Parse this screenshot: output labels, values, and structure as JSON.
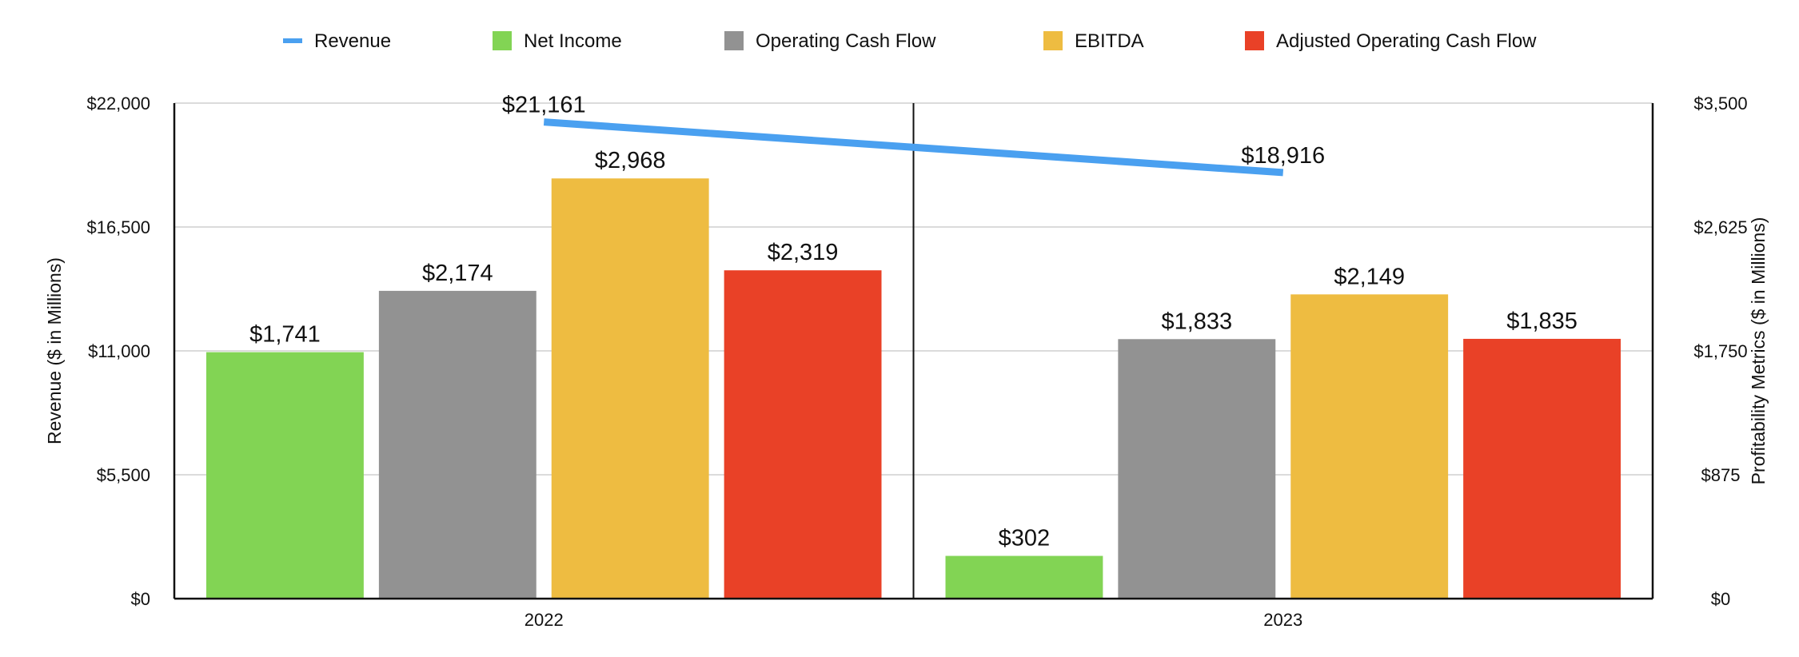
{
  "chart_data": {
    "type": "bar",
    "categories": [
      "2022",
      "2023"
    ],
    "left_axis": {
      "label": "Revenue ($ in Millions)",
      "ylim": [
        0,
        22000
      ],
      "ticks": [
        0,
        5500,
        11000,
        16500,
        22000
      ],
      "tick_labels": [
        "$0",
        "$5,500",
        "$11,000",
        "$16,500",
        "$22,000"
      ]
    },
    "right_axis": {
      "label": "Profitability Metrics ($ in Millions)",
      "ylim": [
        0,
        3500
      ],
      "ticks": [
        0,
        875,
        1750,
        2625,
        3500
      ],
      "tick_labels": [
        "$0",
        "$875",
        "$1,750",
        "$2,625",
        "$3,500"
      ]
    },
    "line_series": {
      "name": "Revenue",
      "axis": "left",
      "color": "#4aa0f0",
      "values": [
        21161,
        18916
      ],
      "labels": [
        "$21,161",
        "$18,916"
      ]
    },
    "series": [
      {
        "name": "Net Income",
        "axis": "right",
        "color": "#82d454",
        "values": [
          1741,
          302
        ],
        "labels": [
          "$1,741",
          "$302"
        ]
      },
      {
        "name": "Operating Cash Flow",
        "axis": "right",
        "color": "#929292",
        "values": [
          2174,
          1833
        ],
        "labels": [
          "$2,174",
          "$1,833"
        ]
      },
      {
        "name": "EBITDA",
        "axis": "right",
        "color": "#eebc41",
        "values": [
          2968,
          2149
        ],
        "labels": [
          "$2,968",
          "$2,149"
        ]
      },
      {
        "name": "Adjusted Operating Cash Flow",
        "axis": "right",
        "color": "#e94127",
        "values": [
          2319,
          1835
        ],
        "labels": [
          "$2,319",
          "$1,835"
        ]
      }
    ],
    "legend": {
      "position": "top",
      "items": [
        {
          "name": "Revenue",
          "marker": "line",
          "color": "#4aa0f0"
        },
        {
          "name": "Net Income",
          "marker": "square",
          "color": "#82d454"
        },
        {
          "name": "Operating Cash Flow",
          "marker": "square",
          "color": "#929292"
        },
        {
          "name": "EBITDA",
          "marker": "square",
          "color": "#eebc41"
        },
        {
          "name": "Adjusted Operating Cash Flow",
          "marker": "square",
          "color": "#e94127"
        }
      ]
    },
    "grid": true
  }
}
